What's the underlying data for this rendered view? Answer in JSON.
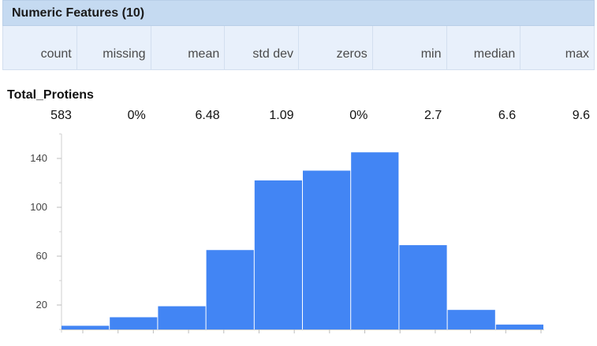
{
  "panel": {
    "title": "Numeric Features (10)"
  },
  "columns": [
    "count",
    "missing",
    "mean",
    "std dev",
    "zeros",
    "min",
    "median",
    "max"
  ],
  "feature": {
    "name": "Total_Protiens",
    "stats": [
      "583",
      "0%",
      "6.48",
      "1.09",
      "0%",
      "2.7",
      "6.6",
      "9.6"
    ]
  },
  "colors": {
    "header_bg": "#c5daf1",
    "subheader_bg": "#e8f0fb",
    "bar": "#4285f4"
  },
  "chart_data": {
    "type": "bar",
    "title": "",
    "xlabel": "",
    "ylabel": "",
    "ylim": [
      0,
      160
    ],
    "yticks": [
      20,
      60,
      100,
      140
    ],
    "values": [
      3,
      10,
      19,
      65,
      122,
      130,
      145,
      69,
      16,
      4
    ]
  }
}
